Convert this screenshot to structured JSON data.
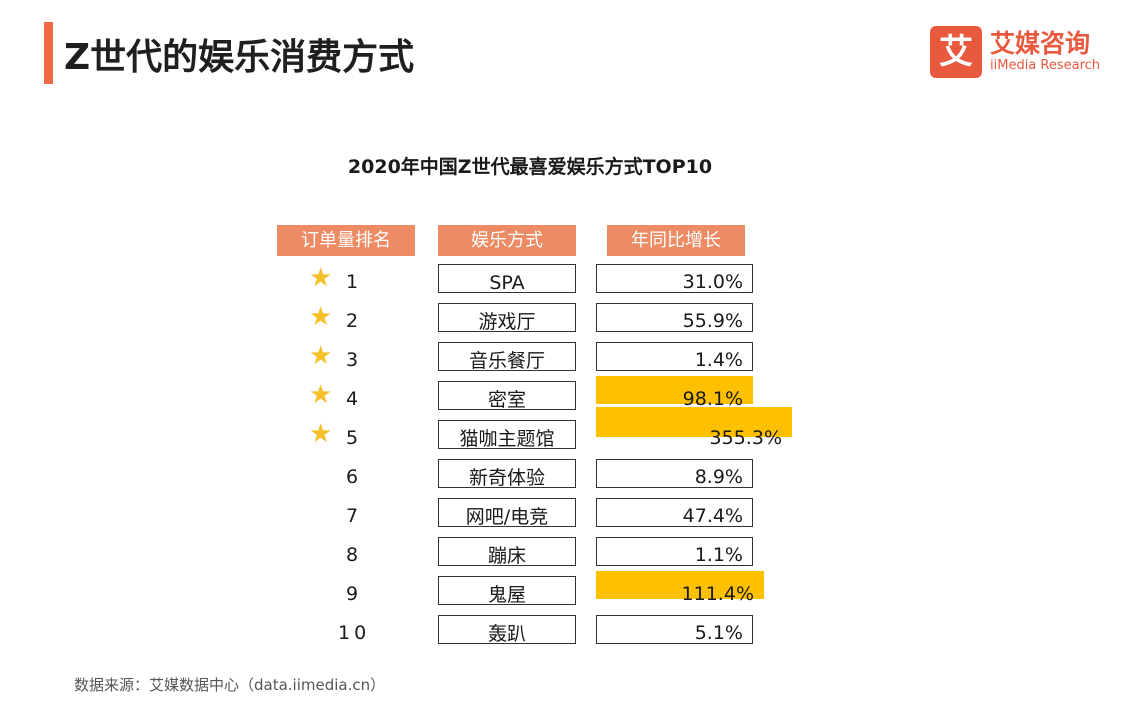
{
  "header": {
    "title": "Z世代的娱乐消费方式"
  },
  "logo": {
    "mark": "艾",
    "name_cn": "艾媒咨询",
    "name_en": "iiMedia Research"
  },
  "chart_data": {
    "type": "table",
    "title": "2020年中国Z世代最喜爱娱乐方式TOP10",
    "columns": [
      "订单量排名",
      "娱乐方式",
      "年同比增长"
    ],
    "rows": [
      {
        "rank": "1",
        "name": "SPA",
        "growth": 31.0,
        "growth_label": "31.0%",
        "star": true,
        "highlight": false
      },
      {
        "rank": "2",
        "name": "游戏厅",
        "growth": 55.9,
        "growth_label": "55.9%",
        "star": true,
        "highlight": false
      },
      {
        "rank": "3",
        "name": "音乐餐厅",
        "growth": 1.4,
        "growth_label": "1.4%",
        "star": true,
        "highlight": false
      },
      {
        "rank": "4",
        "name": "密室",
        "growth": 98.1,
        "growth_label": "98.1%",
        "star": true,
        "highlight": true
      },
      {
        "rank": "5",
        "name": "猫咖主题馆",
        "growth": 355.3,
        "growth_label": "355.3%",
        "star": true,
        "highlight": true
      },
      {
        "rank": "6",
        "name": "新奇体验",
        "growth": 8.9,
        "growth_label": "8.9%",
        "star": false,
        "highlight": false
      },
      {
        "rank": "7",
        "name": "网吧/电竞",
        "growth": 47.4,
        "growth_label": "47.4%",
        "star": false,
        "highlight": false
      },
      {
        "rank": "8",
        "name": "蹦床",
        "growth": 1.1,
        "growth_label": "1.1%",
        "star": false,
        "highlight": false
      },
      {
        "rank": "9",
        "name": "鬼屋",
        "growth": 111.4,
        "growth_label": "111.4%",
        "star": false,
        "highlight": true
      },
      {
        "rank": "10",
        "name": "轰趴",
        "growth": 5.1,
        "growth_label": "5.1%",
        "star": false,
        "highlight": false
      }
    ],
    "highlight_color": "#ffc000",
    "header_color": "#ec8b64",
    "star_color": "#f5c02a"
  },
  "footer": {
    "source": "数据来源：艾媒数据中心（data.iimedia.cn）"
  }
}
